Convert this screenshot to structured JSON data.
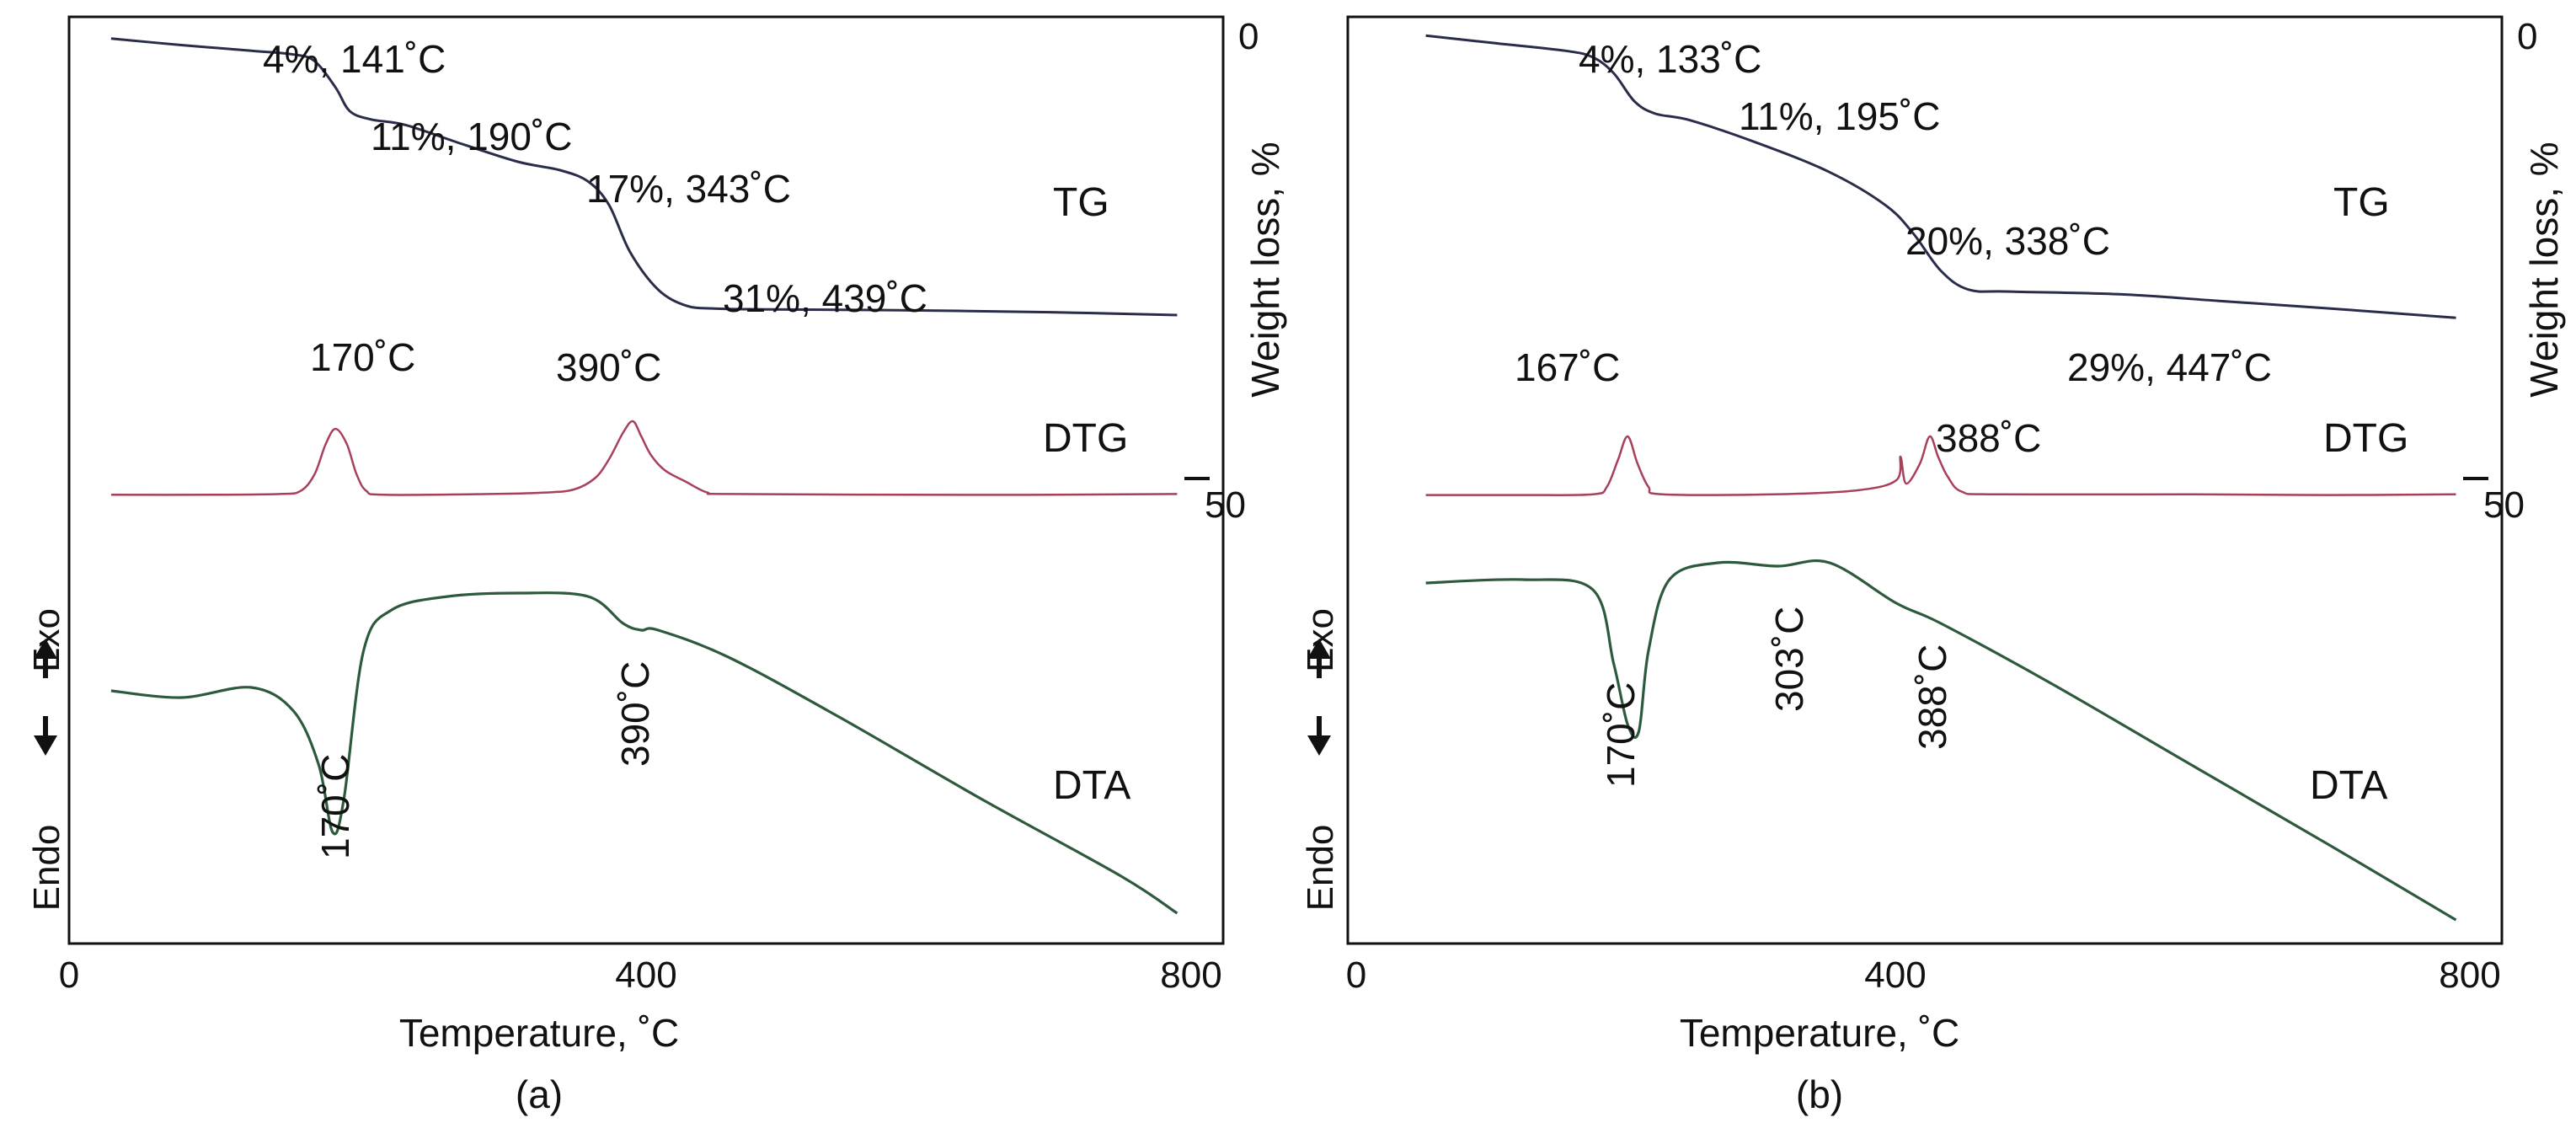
{
  "chart_data": [
    {
      "type": "line",
      "caption": "(a)",
      "xlabel": "Temperature, ˚C",
      "ylabel": "Weight loss, %",
      "xlim": [
        0,
        800
      ],
      "x_ticks": [
        "0",
        "400",
        "800"
      ],
      "y_ticks": [
        "0",
        "50"
      ],
      "weight_loss_range": [
        0,
        60
      ],
      "dta_direction_labels": {
        "exo": "Exo",
        "endo": "Endo"
      },
      "series": [
        {
          "name": "TG",
          "label": "TG",
          "color": "#2a2d4a",
          "x": [
            30,
            80,
            130,
            160,
            175,
            190,
            200,
            215,
            240,
            280,
            320,
            350,
            370,
            385,
            400,
            420,
            440,
            460,
            500,
            600,
            700,
            790
          ],
          "y": [
            2.3,
            3.0,
            3.6,
            4.0,
            4.7,
            7.5,
            10.0,
            10.9,
            11.5,
            13.5,
            15.4,
            16.3,
            17.5,
            20.0,
            25.0,
            29.0,
            30.7,
            31.0,
            31.1,
            31.2,
            31.4,
            31.7
          ]
        },
        {
          "name": "DTG",
          "label": "DTG",
          "color": "#a8405a",
          "x": [
            30,
            100,
            150,
            165,
            175,
            183,
            190,
            198,
            205,
            212,
            225,
            300,
            340,
            360,
            375,
            385,
            395,
            402,
            408,
            415,
            425,
            440,
            455,
            470,
            600,
            700,
            790
          ],
          "y": [
            0.03,
            0.03,
            0.04,
            0.08,
            0.3,
            0.7,
            0.9,
            0.7,
            0.3,
            0.08,
            0.03,
            0.04,
            0.06,
            0.1,
            0.25,
            0.5,
            0.85,
            1.0,
            0.8,
            0.55,
            0.35,
            0.2,
            0.06,
            0.04,
            0.03,
            0.03,
            0.04
          ]
        },
        {
          "name": "DTA",
          "label": "DTA",
          "color": "#2d5a3c",
          "x": [
            30,
            80,
            130,
            160,
            178,
            188,
            196,
            210,
            230,
            270,
            320,
            370,
            395,
            408,
            420,
            470,
            550,
            650,
            750,
            790
          ],
          "y": [
            0.6,
            0.58,
            0.61,
            0.54,
            0.38,
            0.18,
            0.28,
            0.72,
            0.84,
            0.88,
            0.89,
            0.88,
            0.8,
            0.78,
            0.78,
            0.7,
            0.52,
            0.28,
            0.05,
            -0.06
          ]
        }
      ],
      "annotations": [
        {
          "curve": "TG",
          "text": "4%, 141˚C"
        },
        {
          "curve": "TG",
          "text": "11%, 190˚C"
        },
        {
          "curve": "TG",
          "text": "17%, 343˚C"
        },
        {
          "curve": "TG",
          "text": "31%, 439˚C"
        },
        {
          "curve": "DTG",
          "text": "170˚C"
        },
        {
          "curve": "DTG",
          "text": "390˚C"
        },
        {
          "curve": "DTA",
          "text": "170˚C"
        },
        {
          "curve": "DTA",
          "text": "390˚C"
        }
      ]
    },
    {
      "type": "line",
      "caption": "(b)",
      "xlabel": "Temperature, ˚C",
      "ylabel": "Weight loss, %",
      "xlim": [
        0,
        800
      ],
      "x_ticks": [
        "0",
        "400",
        "800"
      ],
      "y_ticks": [
        "0",
        "50"
      ],
      "weight_loss_range": [
        0,
        60
      ],
      "dta_direction_labels": {
        "exo": "Exo",
        "endo": "Endo"
      },
      "series": [
        {
          "name": "TG",
          "label": "TG",
          "color": "#2a2d4a",
          "x": [
            50,
            100,
            150,
            170,
            185,
            200,
            215,
            240,
            290,
            340,
            380,
            400,
            420,
            440,
            470,
            550,
            620,
            700,
            790
          ],
          "y": [
            2.0,
            2.8,
            3.6,
            4.3,
            6.0,
            9.0,
            10.3,
            11.0,
            13.5,
            16.5,
            20.0,
            23.0,
            27.0,
            29.0,
            29.2,
            29.5,
            30.2,
            31.0,
            32.0
          ]
        },
        {
          "name": "DTG",
          "label": "DTG",
          "color": "#a8405a",
          "x": [
            50,
            120,
            170,
            180,
            188,
            195,
            202,
            210,
            220,
            300,
            360,
            388,
            391,
            395,
            405,
            412,
            418,
            425,
            435,
            460,
            600,
            700,
            790
          ],
          "y": [
            0.03,
            0.03,
            0.04,
            0.15,
            0.55,
            0.9,
            0.5,
            0.15,
            0.04,
            0.04,
            0.1,
            0.25,
            0.6,
            0.2,
            0.5,
            0.9,
            0.6,
            0.3,
            0.08,
            0.04,
            0.04,
            0.03,
            0.04
          ]
        },
        {
          "name": "DTA",
          "label": "DTA",
          "color": "#2d5a3c",
          "x": [
            50,
            120,
            170,
            185,
            195,
            203,
            210,
            225,
            260,
            303,
            340,
            388,
            420,
            500,
            600,
            700,
            790
          ],
          "y": [
            0.92,
            0.93,
            0.9,
            0.68,
            0.5,
            0.48,
            0.72,
            0.93,
            0.98,
            0.97,
            0.98,
            0.86,
            0.8,
            0.62,
            0.38,
            0.14,
            -0.08
          ]
        }
      ],
      "annotations": [
        {
          "curve": "TG",
          "text": "4%, 133˚C"
        },
        {
          "curve": "TG",
          "text": "11%, 195˚C"
        },
        {
          "curve": "TG",
          "text": "20%, 338˚C"
        },
        {
          "curve": "TG",
          "text": "29%, 447˚C"
        },
        {
          "curve": "DTG",
          "text": "167˚C"
        },
        {
          "curve": "DTG",
          "text": "388˚C"
        },
        {
          "curve": "DTA",
          "text": "170˚C"
        },
        {
          "curve": "DTA",
          "text": "303˚C"
        },
        {
          "curve": "DTA",
          "text": "388˚C"
        }
      ]
    }
  ]
}
